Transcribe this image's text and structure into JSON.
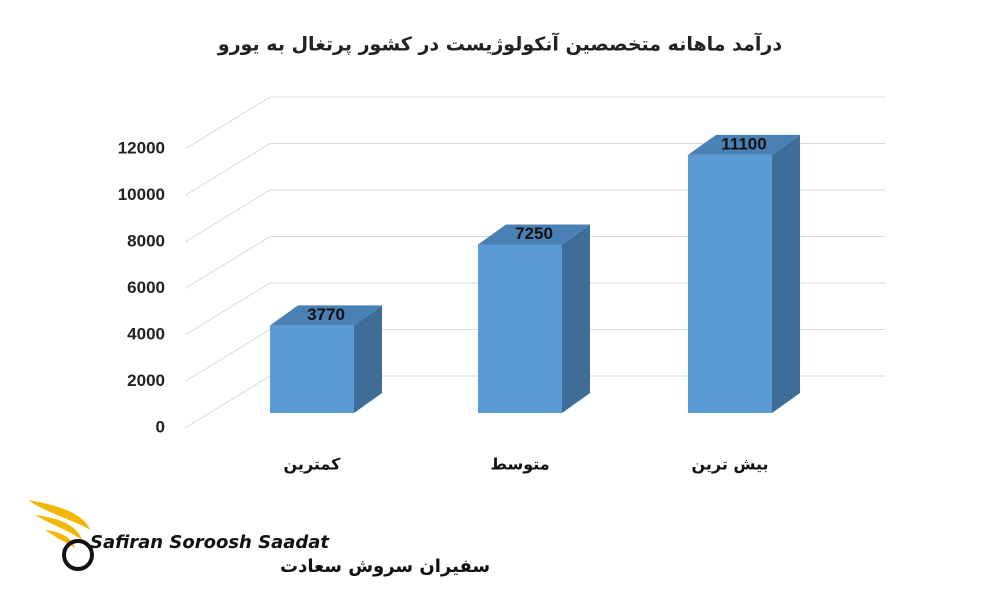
{
  "chart_data": {
    "type": "bar3d",
    "title": "درآمد ماهانه متخصصین آنکولوژیست در کشور پرتغال به یورو",
    "categories": [
      "کمترین",
      "متوسط",
      "بیش ترین"
    ],
    "values": [
      3770,
      7250,
      11100
    ],
    "color": "#5b9bd5",
    "ylim": [
      0,
      12000
    ],
    "yticks": [
      0,
      2000,
      4000,
      6000,
      8000,
      10000,
      12000
    ],
    "grid": true
  },
  "logo": {
    "name": "Safiran Soroosh Saadat",
    "name_fa": "سفیران سروش سعادت"
  }
}
